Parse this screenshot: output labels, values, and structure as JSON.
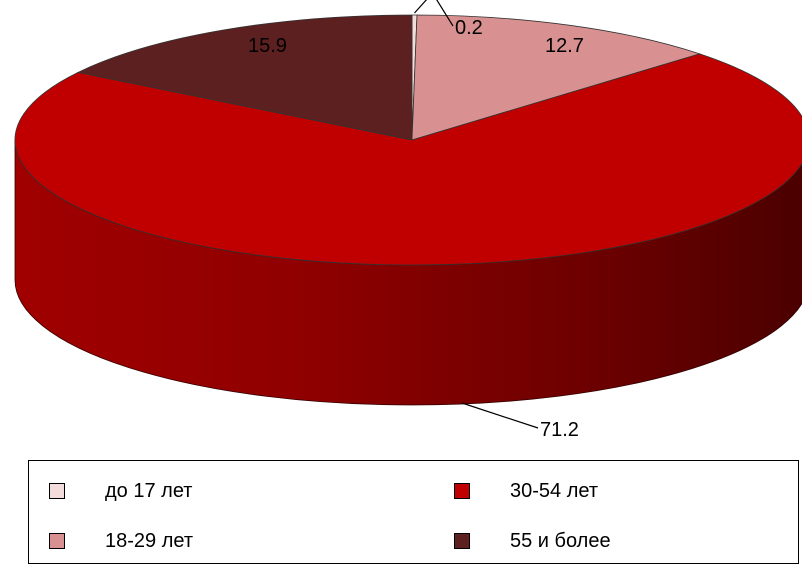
{
  "chart_data": {
    "type": "pie",
    "title": "",
    "three_d": true,
    "categories": [
      "до 17 лет",
      "18-29 лет",
      "30-54 лет",
      "55 и более"
    ],
    "values": [
      0.2,
      12.7,
      71.2,
      15.9
    ],
    "data_labels": [
      "0.2",
      "12.7",
      "71.2",
      "15.9"
    ],
    "colors": [
      "#f3dcdc",
      "#d89090",
      "#c00000",
      "#5c2020"
    ],
    "legend_position": "bottom"
  },
  "legend": {
    "items": [
      {
        "label": "до 17 лет",
        "color": "#f3dcdc"
      },
      {
        "label": "30-54 лет",
        "color": "#c00000"
      },
      {
        "label": "18-29 лет",
        "color": "#d89090"
      },
      {
        "label": "55 и более",
        "color": "#5c2020"
      }
    ]
  }
}
